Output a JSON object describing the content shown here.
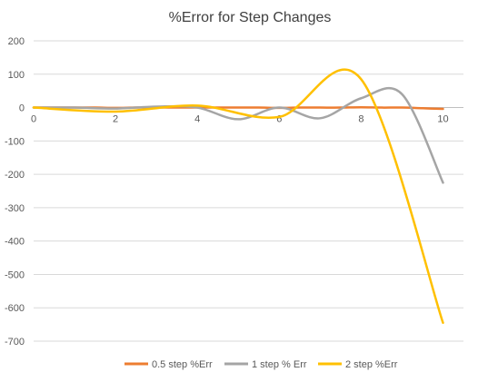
{
  "chart_data": {
    "type": "line",
    "title": "%Error for Step Changes",
    "xlabel": "",
    "ylabel": "",
    "xlim": [
      0,
      10.5
    ],
    "ylim": [
      -700,
      200
    ],
    "x_ticks": [
      0,
      2,
      4,
      6,
      8,
      10
    ],
    "y_ticks": [
      200,
      100,
      0,
      -100,
      -200,
      -300,
      -400,
      -500,
      -600,
      -700
    ],
    "grid": "horizontal",
    "legend_position": "bottom",
    "colors": {
      "0.5 step %Err": "#ED7D31",
      "1 step % Err": "#A5A5A5",
      "2 step %Err": "#FFC000",
      "grid": "#D9D9D9",
      "axis": "#BFBFBF"
    },
    "series": [
      {
        "name": "0.5 step %Err",
        "color": "#ED7D31",
        "x": [
          0,
          0.5,
          1,
          1.5,
          2,
          2.5,
          3,
          3.5,
          4,
          4.5,
          5,
          5.5,
          6,
          6.5,
          7,
          7.5,
          8,
          8.5,
          9,
          9.5,
          10
        ],
        "y": [
          0,
          0,
          0,
          0,
          -1,
          0,
          0,
          0,
          0,
          0,
          0,
          0,
          -1,
          0,
          0,
          0,
          1,
          0,
          0,
          -2,
          -4
        ]
      },
      {
        "name": "1 step % Err",
        "color": "#A5A5A5",
        "x": [
          0,
          1,
          2,
          3,
          4,
          5,
          6,
          7,
          8,
          9,
          10
        ],
        "y": [
          0,
          0,
          -3,
          3,
          0,
          -35,
          0,
          -32,
          28,
          40,
          -225
        ]
      },
      {
        "name": "2 step %Err",
        "color": "#FFC000",
        "x": [
          0,
          2,
          4,
          6,
          8,
          10
        ],
        "y": [
          0,
          -12,
          6,
          -28,
          85,
          -645
        ]
      }
    ]
  }
}
